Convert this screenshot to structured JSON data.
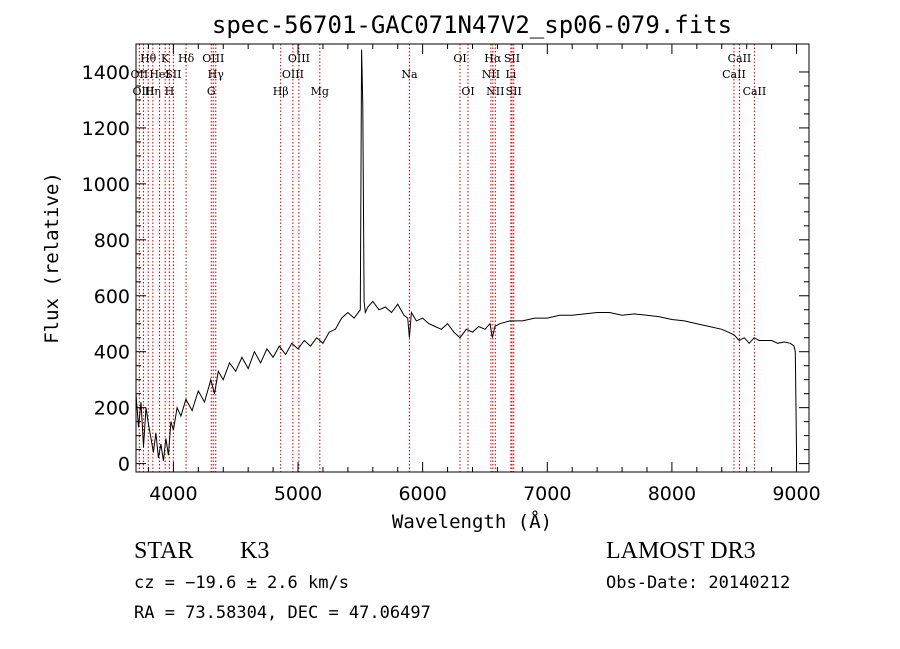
{
  "chart_data": {
    "type": "line",
    "title": "spec-56701-GAC071N47V2_sp06-079.fits",
    "xlabel": "Wavelength (Å)",
    "ylabel": "Flux (relative)",
    "xlim": [
      3700,
      9100
    ],
    "ylim": [
      -30,
      1500
    ],
    "xticks": [
      4000,
      5000,
      6000,
      7000,
      8000,
      9000
    ],
    "xtick_labels": [
      "4000",
      "5000",
      "6000",
      "7000",
      "8000",
      "9000"
    ],
    "yticks": [
      0,
      200,
      400,
      600,
      800,
      1000,
      1200,
      1400
    ],
    "ytick_labels": [
      "0",
      "200",
      "400",
      "600",
      "800",
      "1000",
      "1200",
      "1400"
    ],
    "grid": false,
    "line_color": "#000000",
    "marker_color": "#cc0000",
    "spectral_lines": [
      {
        "label": "Hθ",
        "wavelength": 3798,
        "row": 0
      },
      {
        "label": "OII",
        "wavelength": 3727,
        "row": 1
      },
      {
        "label": "OIII",
        "wavelength": 3760,
        "row": 2
      },
      {
        "label": "Hη",
        "wavelength": 3835,
        "row": 2
      },
      {
        "label": "HeI",
        "wavelength": 3889,
        "row": 1
      },
      {
        "label": "K",
        "wavelength": 3934,
        "row": 0
      },
      {
        "label": "H",
        "wavelength": 3968,
        "row": 2
      },
      {
        "label": "SII",
        "wavelength": 4000,
        "row": 1
      },
      {
        "label": "Hδ",
        "wavelength": 4102,
        "row": 0
      },
      {
        "label": "OIII",
        "wavelength": 4320,
        "row": 0
      },
      {
        "label": "Hγ",
        "wavelength": 4340,
        "row": 1
      },
      {
        "label": "G",
        "wavelength": 4304,
        "row": 2
      },
      {
        "label": "Hβ",
        "wavelength": 4861,
        "row": 2
      },
      {
        "label": "OIII",
        "wavelength": 4959,
        "row": 1
      },
      {
        "label": "OIII",
        "wavelength": 5007,
        "row": 0
      },
      {
        "label": "Mg",
        "wavelength": 5175,
        "row": 2
      },
      {
        "label": "Na",
        "wavelength": 5894,
        "row": 1
      },
      {
        "label": "OI",
        "wavelength": 6300,
        "row": 0
      },
      {
        "label": "OI",
        "wavelength": 6364,
        "row": 2
      },
      {
        "label": "Hα",
        "wavelength": 6563,
        "row": 0
      },
      {
        "label": "NII",
        "wavelength": 6548,
        "row": 1
      },
      {
        "label": "NII",
        "wavelength": 6583,
        "row": 2
      },
      {
        "label": "SII",
        "wavelength": 6717,
        "row": 0
      },
      {
        "label": "Li",
        "wavelength": 6708,
        "row": 1
      },
      {
        "label": "SII",
        "wavelength": 6731,
        "row": 2
      },
      {
        "label": "CaII",
        "wavelength": 8542,
        "row": 0
      },
      {
        "label": "CaII",
        "wavelength": 8498,
        "row": 1
      },
      {
        "label": "CaII",
        "wavelength": 8662,
        "row": 2
      }
    ],
    "series": [
      {
        "name": "flux",
        "x": [
          3700,
          3720,
          3740,
          3760,
          3780,
          3800,
          3820,
          3840,
          3860,
          3880,
          3900,
          3920,
          3940,
          3960,
          3980,
          4000,
          4030,
          4060,
          4100,
          4150,
          4200,
          4250,
          4300,
          4330,
          4360,
          4400,
          4450,
          4500,
          4550,
          4600,
          4650,
          4700,
          4750,
          4800,
          4850,
          4900,
          4950,
          5000,
          5050,
          5100,
          5150,
          5200,
          5250,
          5300,
          5350,
          5400,
          5450,
          5500,
          5510,
          5520,
          5530,
          5540,
          5560,
          5600,
          5650,
          5700,
          5750,
          5800,
          5850,
          5880,
          5894,
          5910,
          5950,
          6000,
          6050,
          6100,
          6150,
          6200,
          6250,
          6300,
          6350,
          6400,
          6450,
          6500,
          6540,
          6560,
          6580,
          6620,
          6700,
          6800,
          6900,
          7000,
          7100,
          7200,
          7300,
          7400,
          7500,
          7600,
          7700,
          7800,
          7900,
          8000,
          8100,
          8200,
          8300,
          8400,
          8450,
          8500,
          8540,
          8580,
          8620,
          8660,
          8700,
          8750,
          8800,
          8850,
          8900,
          8950,
          8980,
          8990,
          9000,
          9000
        ],
        "values": [
          250,
          130,
          220,
          60,
          200,
          140,
          90,
          40,
          110,
          20,
          70,
          10,
          90,
          30,
          150,
          120,
          200,
          170,
          230,
          190,
          260,
          220,
          300,
          250,
          330,
          300,
          360,
          330,
          380,
          340,
          400,
          360,
          410,
          380,
          420,
          390,
          430,
          410,
          440,
          420,
          450,
          430,
          470,
          480,
          520,
          540,
          520,
          550,
          1480,
          1280,
          580,
          540,
          560,
          580,
          550,
          560,
          540,
          570,
          530,
          520,
          450,
          540,
          510,
          520,
          500,
          490,
          480,
          500,
          470,
          450,
          480,
          470,
          490,
          480,
          500,
          450,
          490,
          500,
          510,
          510,
          520,
          520,
          530,
          530,
          535,
          540,
          540,
          530,
          535,
          530,
          525,
          515,
          510,
          500,
          490,
          480,
          470,
          460,
          440,
          450,
          430,
          450,
          440,
          440,
          440,
          430,
          435,
          430,
          420,
          400,
          50,
          0
        ]
      }
    ]
  },
  "info": {
    "object_class": "STAR",
    "subclass": "K3",
    "survey": "LAMOST DR3",
    "redshift_text": "cz = −19.6 ± 2.6 km/s",
    "obs_date_text": "Obs-Date: 20140212",
    "coords_text": "RA =  73.58304, DEC =  47.06497"
  }
}
